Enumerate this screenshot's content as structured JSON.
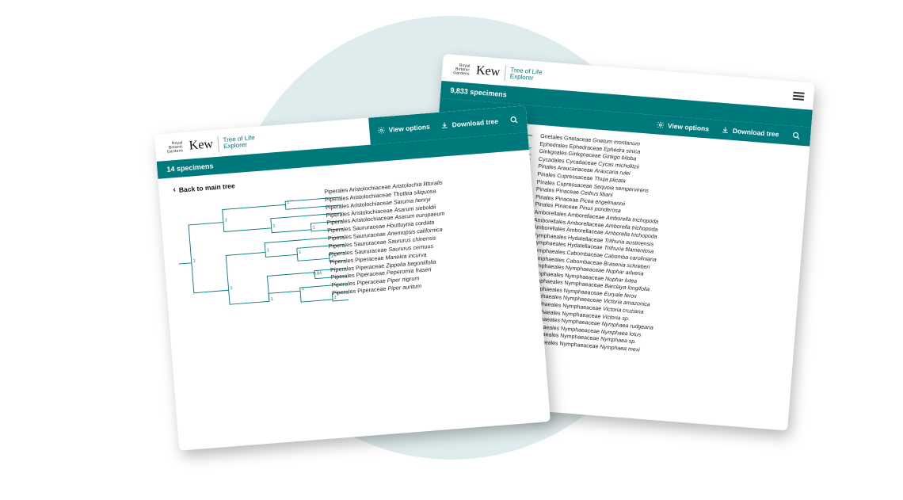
{
  "colors": {
    "teal": "#00797d",
    "bg_circle": "#dfeced",
    "white": "#ffffff",
    "text": "#222222"
  },
  "brand": {
    "royal": "Royal",
    "botanic": "Botanic",
    "gardens": "Gardens",
    "kew": "Kew",
    "sub_line1": "Tree of Life",
    "sub_line2": "Explorer"
  },
  "actions": {
    "view_options": "View options",
    "download_tree": "Download tree"
  },
  "panel_left": {
    "specimens": "14 specimens",
    "back_link": "Back to main tree",
    "node_values": [
      "1",
      "1",
      "1",
      "1",
      "1",
      "1",
      "1",
      "1",
      "1",
      "1",
      "0.84",
      "1",
      "1"
    ],
    "leaves": [
      {
        "order": "Piperales",
        "family": "Aristolochiaceae",
        "species": "Aristolochia littoralis"
      },
      {
        "order": "Piperales",
        "family": "Aristolochiaceae",
        "species": "Thottea siliquosa"
      },
      {
        "order": "Piperales",
        "family": "Aristolochiaceae",
        "species": "Saruma henryi"
      },
      {
        "order": "Piperales",
        "family": "Aristolochiaceae",
        "species": "Asarum sieboldii"
      },
      {
        "order": "Piperales",
        "family": "Aristolochiaceae",
        "species": "Asarum europaeum"
      },
      {
        "order": "Piperales",
        "family": "Saururaceae",
        "species": "Houttuynia cordata"
      },
      {
        "order": "Piperales",
        "family": "Saururaceae",
        "species": "Anemopsis californica"
      },
      {
        "order": "Piperales",
        "family": "Saururaceae",
        "species": "Saururus chinensis"
      },
      {
        "order": "Piperales",
        "family": "Saururaceae",
        "species": "Saururus cernuus"
      },
      {
        "order": "Piperales",
        "family": "Piperaceae",
        "species": "Manekia incurva"
      },
      {
        "order": "Piperales",
        "family": "Piperaceae",
        "species": "Zippelia begoniifolia"
      },
      {
        "order": "Piperales",
        "family": "Piperaceae",
        "species": "Peperomia fraseri"
      },
      {
        "order": "Piperales",
        "family": "Piperaceae",
        "species": "Piper nigrum"
      },
      {
        "order": "Piperales",
        "family": "Piperaceae",
        "species": "Piper auritum"
      }
    ]
  },
  "panel_right": {
    "specimens": "9,833 specimens",
    "leaves": [
      {
        "order": "Gnetales",
        "family": "Gnetaceae",
        "species": "Gnetum montanum"
      },
      {
        "order": "Ephedrales",
        "family": "Ephedraceae",
        "species": "Ephedra sinica"
      },
      {
        "order": "Ginkgoales",
        "family": "Ginkgoaceae",
        "species": "Ginkgo biloba"
      },
      {
        "order": "Cycadales",
        "family": "Cycadaceae",
        "species": "Cycas micholitzii"
      },
      {
        "order": "Pinales",
        "family": "Araucariaceae",
        "species": "Araucaria rulei"
      },
      {
        "order": "Pinales",
        "family": "Cupressaceae",
        "species": "Thuja plicata"
      },
      {
        "order": "Pinales",
        "family": "Cupressaceae",
        "species": "Sequoia sempervirens"
      },
      {
        "order": "Pinales",
        "family": "Pinaceae",
        "species": "Cedrus libani"
      },
      {
        "order": "Pinales",
        "family": "Pinaceae",
        "species": "Picea engelmannii"
      },
      {
        "order": "Pinales",
        "family": "Pinaceae",
        "species": "Pinus ponderosa"
      },
      {
        "order": "Amborellales",
        "family": "Amborellaceae",
        "species": "Amborella trichopoda"
      },
      {
        "order": "Amborellales",
        "family": "Amborellaceae",
        "species": "Amborella trichopoda"
      },
      {
        "order": "Amborellales",
        "family": "Amborellaceae",
        "species": "Amborella trichopoda"
      },
      {
        "order": "Nymphaeales",
        "family": "Hydatellaceae",
        "species": "Trithuria austinensis"
      },
      {
        "order": "Nymphaeales",
        "family": "Hydatellaceae",
        "species": "Trithuria filamentosa"
      },
      {
        "order": "Nymphaeales",
        "family": "Cabombaceae",
        "species": "Cabomba caroliniana"
      },
      {
        "order": "Nymphaeales",
        "family": "Cabombaceae",
        "species": "Brasenia schreberi"
      },
      {
        "order": "Nymphaeales",
        "family": "Nymphaeaceae",
        "species": "Nuphar advena"
      },
      {
        "order": "Nymphaeales",
        "family": "Nymphaeaceae",
        "species": "Nuphar lutea"
      },
      {
        "order": "Nymphaeales",
        "family": "Nymphaeaceae",
        "species": "Barclaya longifolia"
      },
      {
        "order": "Nymphaeales",
        "family": "Nymphaeaceae",
        "species": "Euryale ferox"
      },
      {
        "order": "Nymphaeales",
        "family": "Nymphaeaceae",
        "species": "Victoria amazonica"
      },
      {
        "order": "Nymphaeales",
        "family": "Nymphaeaceae",
        "species": "Victoria cruziana"
      },
      {
        "order": "Nymphaeales",
        "family": "Nymphaeaceae",
        "species": "Victoria sp."
      },
      {
        "order": "Nymphaeales",
        "family": "Nymphaeaceae",
        "species": "Nymphaea rudgeana"
      },
      {
        "order": "Nymphaeales",
        "family": "Nymphaeaceae",
        "species": "Nymphaea lotus"
      },
      {
        "order": "Nymphaeales",
        "family": "Nymphaeaceae",
        "species": "Nymphaea sp."
      },
      {
        "order": "Nymphaeales",
        "family": "Nymphaeaceae",
        "species": "Nymphaea mexi"
      }
    ]
  }
}
